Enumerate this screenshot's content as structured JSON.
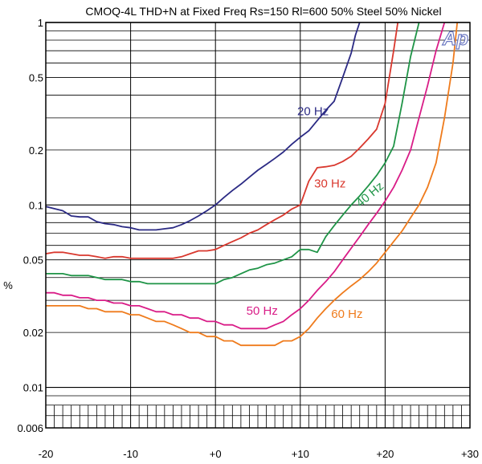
{
  "chart_data": {
    "type": "line",
    "title": "CMOQ-4L THD+N at Fixed Freq Rs=150 Rl=600 50% Steel 50% Nickel",
    "xlabel": "",
    "ylabel": "%",
    "x_scale": "linear",
    "y_scale": "log",
    "xlim": [
      -20,
      30
    ],
    "ylim": [
      0.006,
      1
    ],
    "grid": true,
    "legend": "inline labels",
    "logo_text": "Ap",
    "x_ticks": [
      {
        "value": -20,
        "label": "-20"
      },
      {
        "value": -10,
        "label": "-10"
      },
      {
        "value": 0,
        "label": "+0"
      },
      {
        "value": 10,
        "label": "+10"
      },
      {
        "value": 20,
        "label": "+20"
      },
      {
        "value": 30,
        "label": "+30"
      }
    ],
    "y_ticks": [
      {
        "value": 1,
        "label": "1"
      },
      {
        "value": 0.5,
        "label": "0.5"
      },
      {
        "value": 0.2,
        "label": "0.2"
      },
      {
        "value": 0.1,
        "label": "0.1"
      },
      {
        "value": 0.05,
        "label": "0.05"
      },
      {
        "value": 0.02,
        "label": "0.02"
      },
      {
        "value": 0.01,
        "label": "0.01"
      },
      {
        "value": 0.006,
        "label": "0.006"
      }
    ],
    "series": [
      {
        "name": "20 Hz",
        "color": "#2b2a84",
        "x": [
          -20,
          -18,
          -17,
          -16,
          -15,
          -14,
          -13,
          -12,
          -11,
          -10,
          -9,
          -8,
          -7,
          -6,
          -5,
          -4,
          -3,
          -2,
          -1,
          0,
          1,
          2,
          3,
          4,
          5,
          6,
          7,
          8,
          9,
          10,
          11,
          12,
          13,
          14,
          15,
          16,
          16.5,
          17
        ],
        "y": [
          0.098,
          0.093,
          0.087,
          0.086,
          0.086,
          0.081,
          0.079,
          0.078,
          0.076,
          0.075,
          0.073,
          0.073,
          0.073,
          0.074,
          0.075,
          0.078,
          0.082,
          0.087,
          0.093,
          0.1,
          0.11,
          0.12,
          0.13,
          0.142,
          0.155,
          0.167,
          0.18,
          0.195,
          0.215,
          0.235,
          0.255,
          0.29,
          0.33,
          0.37,
          0.5,
          0.68,
          0.85,
          1.0
        ]
      },
      {
        "name": "30 Hz",
        "color": "#d9382e",
        "x": [
          -20,
          -19,
          -18,
          -17,
          -16,
          -15,
          -14,
          -13,
          -12,
          -11,
          -10,
          -9,
          -8,
          -7,
          -6,
          -5,
          -4,
          -3,
          -2,
          -1,
          0,
          1,
          2,
          3,
          4,
          5,
          6,
          7,
          8,
          9,
          10,
          11,
          12,
          13,
          14,
          15,
          16,
          17,
          18,
          19,
          20,
          21,
          21.5
        ],
        "y": [
          0.054,
          0.055,
          0.055,
          0.054,
          0.053,
          0.053,
          0.052,
          0.051,
          0.052,
          0.052,
          0.051,
          0.051,
          0.051,
          0.051,
          0.051,
          0.051,
          0.052,
          0.054,
          0.056,
          0.056,
          0.057,
          0.06,
          0.063,
          0.066,
          0.07,
          0.073,
          0.078,
          0.083,
          0.088,
          0.095,
          0.1,
          0.135,
          0.16,
          0.162,
          0.165,
          0.173,
          0.185,
          0.205,
          0.23,
          0.26,
          0.36,
          0.7,
          1.0
        ]
      },
      {
        "name": "40 Hz",
        "color": "#1f9447",
        "x": [
          -20,
          -19,
          -18,
          -17,
          -16,
          -15,
          -14,
          -13,
          -12,
          -11,
          -10,
          -9,
          -8,
          -7,
          -6,
          -5,
          -4,
          -3,
          -2,
          -1,
          0,
          1,
          2,
          3,
          4,
          5,
          6,
          7,
          8,
          9,
          10,
          11,
          12,
          13,
          14,
          15,
          16,
          17,
          18,
          19,
          20,
          21,
          22,
          23,
          24
        ],
        "y": [
          0.042,
          0.042,
          0.042,
          0.041,
          0.041,
          0.041,
          0.04,
          0.039,
          0.039,
          0.039,
          0.038,
          0.038,
          0.037,
          0.037,
          0.037,
          0.037,
          0.037,
          0.037,
          0.037,
          0.037,
          0.037,
          0.039,
          0.04,
          0.042,
          0.044,
          0.045,
          0.047,
          0.048,
          0.05,
          0.052,
          0.057,
          0.057,
          0.055,
          0.067,
          0.077,
          0.088,
          0.1,
          0.112,
          0.127,
          0.145,
          0.17,
          0.21,
          0.36,
          0.65,
          1.0
        ]
      },
      {
        "name": "50 Hz",
        "color": "#d91c87",
        "x": [
          -20,
          -19,
          -18,
          -17,
          -16,
          -15,
          -14,
          -13,
          -12,
          -11,
          -10,
          -9,
          -8,
          -7,
          -6,
          -5,
          -4,
          -3,
          -2,
          -1,
          0,
          1,
          2,
          3,
          4,
          5,
          6,
          7,
          8,
          9,
          10,
          11,
          12,
          13,
          14,
          15,
          16,
          17,
          18,
          19,
          20,
          21,
          22,
          23,
          24,
          25,
          26,
          27
        ],
        "y": [
          0.033,
          0.033,
          0.032,
          0.032,
          0.031,
          0.031,
          0.03,
          0.03,
          0.029,
          0.029,
          0.028,
          0.028,
          0.027,
          0.026,
          0.026,
          0.025,
          0.025,
          0.024,
          0.024,
          0.023,
          0.023,
          0.022,
          0.022,
          0.021,
          0.021,
          0.021,
          0.021,
          0.022,
          0.023,
          0.025,
          0.027,
          0.03,
          0.034,
          0.038,
          0.043,
          0.05,
          0.058,
          0.067,
          0.078,
          0.09,
          0.105,
          0.125,
          0.155,
          0.2,
          0.3,
          0.45,
          0.7,
          1.0
        ]
      },
      {
        "name": "60 Hz",
        "color": "#ef7b1c",
        "x": [
          -20,
          -19,
          -18,
          -17,
          -16,
          -15,
          -14,
          -13,
          -12,
          -11,
          -10,
          -9,
          -8,
          -7,
          -6,
          -5,
          -4,
          -3,
          -2,
          -1,
          0,
          1,
          2,
          3,
          4,
          5,
          6,
          7,
          8,
          9,
          10,
          11,
          12,
          13,
          14,
          15,
          16,
          17,
          18,
          19,
          20,
          21,
          22,
          23,
          24,
          25,
          26,
          27,
          28,
          28.5
        ],
        "y": [
          0.028,
          0.028,
          0.028,
          0.028,
          0.028,
          0.027,
          0.027,
          0.026,
          0.026,
          0.026,
          0.025,
          0.025,
          0.024,
          0.023,
          0.023,
          0.022,
          0.021,
          0.02,
          0.02,
          0.019,
          0.019,
          0.018,
          0.018,
          0.017,
          0.017,
          0.017,
          0.017,
          0.017,
          0.018,
          0.018,
          0.019,
          0.021,
          0.024,
          0.027,
          0.03,
          0.033,
          0.036,
          0.039,
          0.043,
          0.048,
          0.055,
          0.063,
          0.072,
          0.085,
          0.1,
          0.125,
          0.17,
          0.3,
          0.6,
          1.0
        ]
      }
    ],
    "annotations": [
      {
        "series": "20 Hz",
        "text": "20 Hz",
        "x": 11.5,
        "y": 0.31,
        "rotate": 0
      },
      {
        "series": "30 Hz",
        "text": "30 Hz",
        "x": 13.5,
        "y": 0.125,
        "rotate": 0
      },
      {
        "series": "40 Hz",
        "text": "40 Hz",
        "x": 18.5,
        "y": 0.11,
        "rotate": -40
      },
      {
        "series": "50 Hz",
        "text": "50 Hz",
        "x": 5.5,
        "y": 0.025,
        "rotate": 0
      },
      {
        "series": "60 Hz",
        "text": "60 Hz",
        "x": 15.5,
        "y": 0.024,
        "rotate": 0
      }
    ]
  }
}
